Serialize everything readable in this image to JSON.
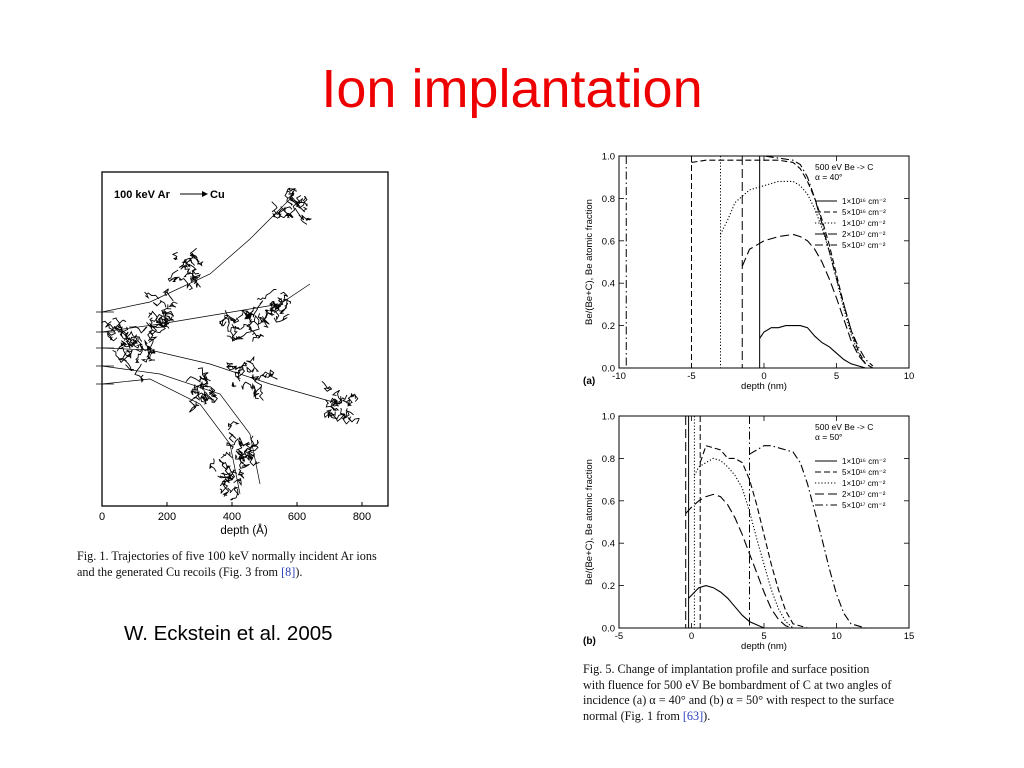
{
  "slide": {
    "title": "Ion implantation",
    "author": "W. Eckstein et al. 2005"
  },
  "colors": {
    "title": "#ee0000",
    "link": "#2a3fbf"
  },
  "chart_data": [
    {
      "type": "scatter",
      "title": "100 keV Ar",
      "title_target": "Cu",
      "xlabel": "depth (Å)",
      "ylabel": "",
      "xlim": [
        0,
        880
      ],
      "x_ticks": [
        0,
        200,
        400,
        600,
        800
      ],
      "incident_ions": 5,
      "grid": false,
      "caption_lines": [
        {
          "text": "Fig. 1. Trajectories of five 100 keV normally incident Ar ions"
        },
        {
          "text": "and the generated Cu recoils (Fig. 3 from ",
          "ref": "[8]",
          "tail": ")."
        }
      ]
    },
    {
      "type": "line",
      "panel": "(a)",
      "annotation": [
        "500 eV Be -> C",
        "α = 40°"
      ],
      "xlabel": "depth (nm)",
      "ylabel": "Be/(Be+C), Be atomic fraction",
      "xlim": [
        -10,
        10
      ],
      "ylim": [
        0,
        1
      ],
      "x_ticks": [
        -10,
        -5,
        0,
        5,
        10
      ],
      "y_ticks": [
        "0.0",
        "0.2",
        "0.4",
        "0.6",
        "0.8",
        "1.0"
      ],
      "legend_position": "top-right",
      "series": [
        {
          "name": "1×10¹⁶ cm⁻²",
          "style": "solid",
          "surface": -0.3,
          "x": [
            -0.3,
            0,
            0.5,
            1,
            1.5,
            2,
            2.5,
            3,
            3.5,
            4,
            4.5,
            5,
            5.5,
            6,
            7
          ],
          "y": [
            0.14,
            0.17,
            0.19,
            0.19,
            0.2,
            0.2,
            0.2,
            0.19,
            0.15,
            0.12,
            0.1,
            0.07,
            0.04,
            0.02,
            0.0
          ]
        },
        {
          "name": "5×10¹⁶ cm⁻²",
          "style": "dashed",
          "surface": -5,
          "x": [
            -5,
            -4,
            -2,
            0,
            1,
            2,
            2.5,
            3,
            3.5,
            4,
            4.5,
            5,
            5.5,
            6,
            6.5,
            7
          ],
          "y": [
            0.97,
            0.98,
            0.98,
            0.98,
            0.98,
            0.97,
            0.94,
            0.88,
            0.8,
            0.7,
            0.58,
            0.44,
            0.3,
            0.18,
            0.08,
            0.02
          ]
        },
        {
          "name": "1×10¹⁷ cm⁻²",
          "style": "dotted",
          "surface": -3,
          "x": [
            -3,
            -2.5,
            -2,
            -1,
            0,
            1,
            2,
            2.5,
            3,
            3.5,
            4,
            4.5,
            5,
            5.5,
            6,
            6.5,
            7
          ],
          "y": [
            0.63,
            0.7,
            0.78,
            0.84,
            0.86,
            0.88,
            0.88,
            0.86,
            0.82,
            0.75,
            0.66,
            0.55,
            0.42,
            0.28,
            0.16,
            0.07,
            0.02
          ]
        },
        {
          "name": "2×10¹⁷ cm⁻²",
          "style": "dash-long",
          "surface": -1.5,
          "x": [
            -1.5,
            -1,
            0,
            1,
            2,
            2.5,
            3,
            3.5,
            4,
            4.5,
            5,
            5.5,
            6,
            6.5,
            7,
            7.5
          ],
          "y": [
            0.48,
            0.56,
            0.6,
            0.62,
            0.63,
            0.62,
            0.6,
            0.56,
            0.5,
            0.42,
            0.33,
            0.23,
            0.13,
            0.06,
            0.02,
            0.0
          ]
        },
        {
          "name": "5×10¹⁷ cm⁻²",
          "style": "dash-dot",
          "surface": -9.5,
          "x": [
            -9.5,
            -8,
            -6,
            -4,
            -2,
            0,
            1,
            2,
            2.5,
            3,
            3.5,
            4,
            4.5,
            5,
            5.5,
            6,
            6.5,
            7,
            7.5
          ],
          "y": [
            1.0,
            1.0,
            1.0,
            1.0,
            1.0,
            1.0,
            0.99,
            0.98,
            0.96,
            0.9,
            0.8,
            0.68,
            0.55,
            0.42,
            0.3,
            0.18,
            0.1,
            0.04,
            0.01
          ]
        }
      ]
    },
    {
      "type": "line",
      "panel": "(b)",
      "annotation": [
        "500 eV Be -> C",
        "α = 50°"
      ],
      "xlabel": "depth (nm)",
      "ylabel": "Be/(Be+C), Be atomic fraction",
      "xlim": [
        -5,
        15
      ],
      "ylim": [
        0,
        1
      ],
      "x_ticks": [
        -5,
        0,
        5,
        10,
        15
      ],
      "y_ticks": [
        "0.0",
        "0.2",
        "0.4",
        "0.6",
        "0.8",
        "1.0"
      ],
      "legend_position": "top-right",
      "series": [
        {
          "name": "1×10¹⁶ cm⁻²",
          "style": "solid",
          "surface": -0.2,
          "x": [
            -0.2,
            0.5,
            1,
            1.5,
            2,
            2.5,
            3,
            3.5,
            4,
            5
          ],
          "y": [
            0.14,
            0.19,
            0.2,
            0.19,
            0.17,
            0.14,
            0.1,
            0.06,
            0.03,
            0.0
          ]
        },
        {
          "name": "5×10¹⁶ cm⁻²",
          "style": "dashed",
          "surface": 0.6,
          "x": [
            0.6,
            1,
            2,
            2.5,
            3,
            3.5,
            4,
            4.5,
            5,
            5.5,
            6,
            6.5,
            7,
            8
          ],
          "y": [
            0.78,
            0.86,
            0.84,
            0.8,
            0.8,
            0.78,
            0.7,
            0.58,
            0.44,
            0.3,
            0.18,
            0.08,
            0.02,
            0.0
          ]
        },
        {
          "name": "1×10¹⁷ cm⁻²",
          "style": "dotted",
          "surface": 0.2,
          "x": [
            0.2,
            0.5,
            1,
            1.5,
            2,
            2.5,
            3,
            3.5,
            4,
            4.5,
            5,
            5.5,
            6,
            6.5,
            7
          ],
          "y": [
            0.72,
            0.76,
            0.78,
            0.8,
            0.79,
            0.76,
            0.72,
            0.66,
            0.55,
            0.42,
            0.3,
            0.18,
            0.09,
            0.03,
            0.0
          ]
        },
        {
          "name": "2×10¹⁷ cm⁻²",
          "style": "dash-long",
          "surface": -0.4,
          "x": [
            -0.4,
            0,
            0.5,
            1,
            1.5,
            2,
            2.5,
            3,
            3.5,
            4,
            4.5,
            5,
            5.5,
            6,
            6.5,
            7
          ],
          "y": [
            0.54,
            0.57,
            0.6,
            0.62,
            0.63,
            0.62,
            0.58,
            0.52,
            0.44,
            0.35,
            0.26,
            0.17,
            0.09,
            0.04,
            0.01,
            0.0
          ]
        },
        {
          "name": "5×10¹⁷ cm⁻²",
          "style": "dash-dot",
          "surface": 4,
          "x": [
            4,
            4.5,
            5,
            5.5,
            6,
            6.5,
            7,
            7.5,
            8,
            8.5,
            9,
            9.5,
            10,
            10.5,
            11,
            12
          ],
          "y": [
            0.82,
            0.84,
            0.86,
            0.86,
            0.85,
            0.84,
            0.83,
            0.78,
            0.68,
            0.55,
            0.42,
            0.28,
            0.16,
            0.07,
            0.02,
            0.0
          ]
        }
      ],
      "caption_lines": [
        {
          "text": "Fig. 5. Change of implantation profile and surface position"
        },
        {
          "text": "with fluence for 500 eV Be bombardment of C at two angles of"
        },
        {
          "text": "incidence (a) α = 40° and (b) α = 50° with respect to the surface"
        },
        {
          "text": "normal (Fig. 1 from ",
          "ref": "[63]",
          "tail": ")."
        }
      ]
    }
  ]
}
